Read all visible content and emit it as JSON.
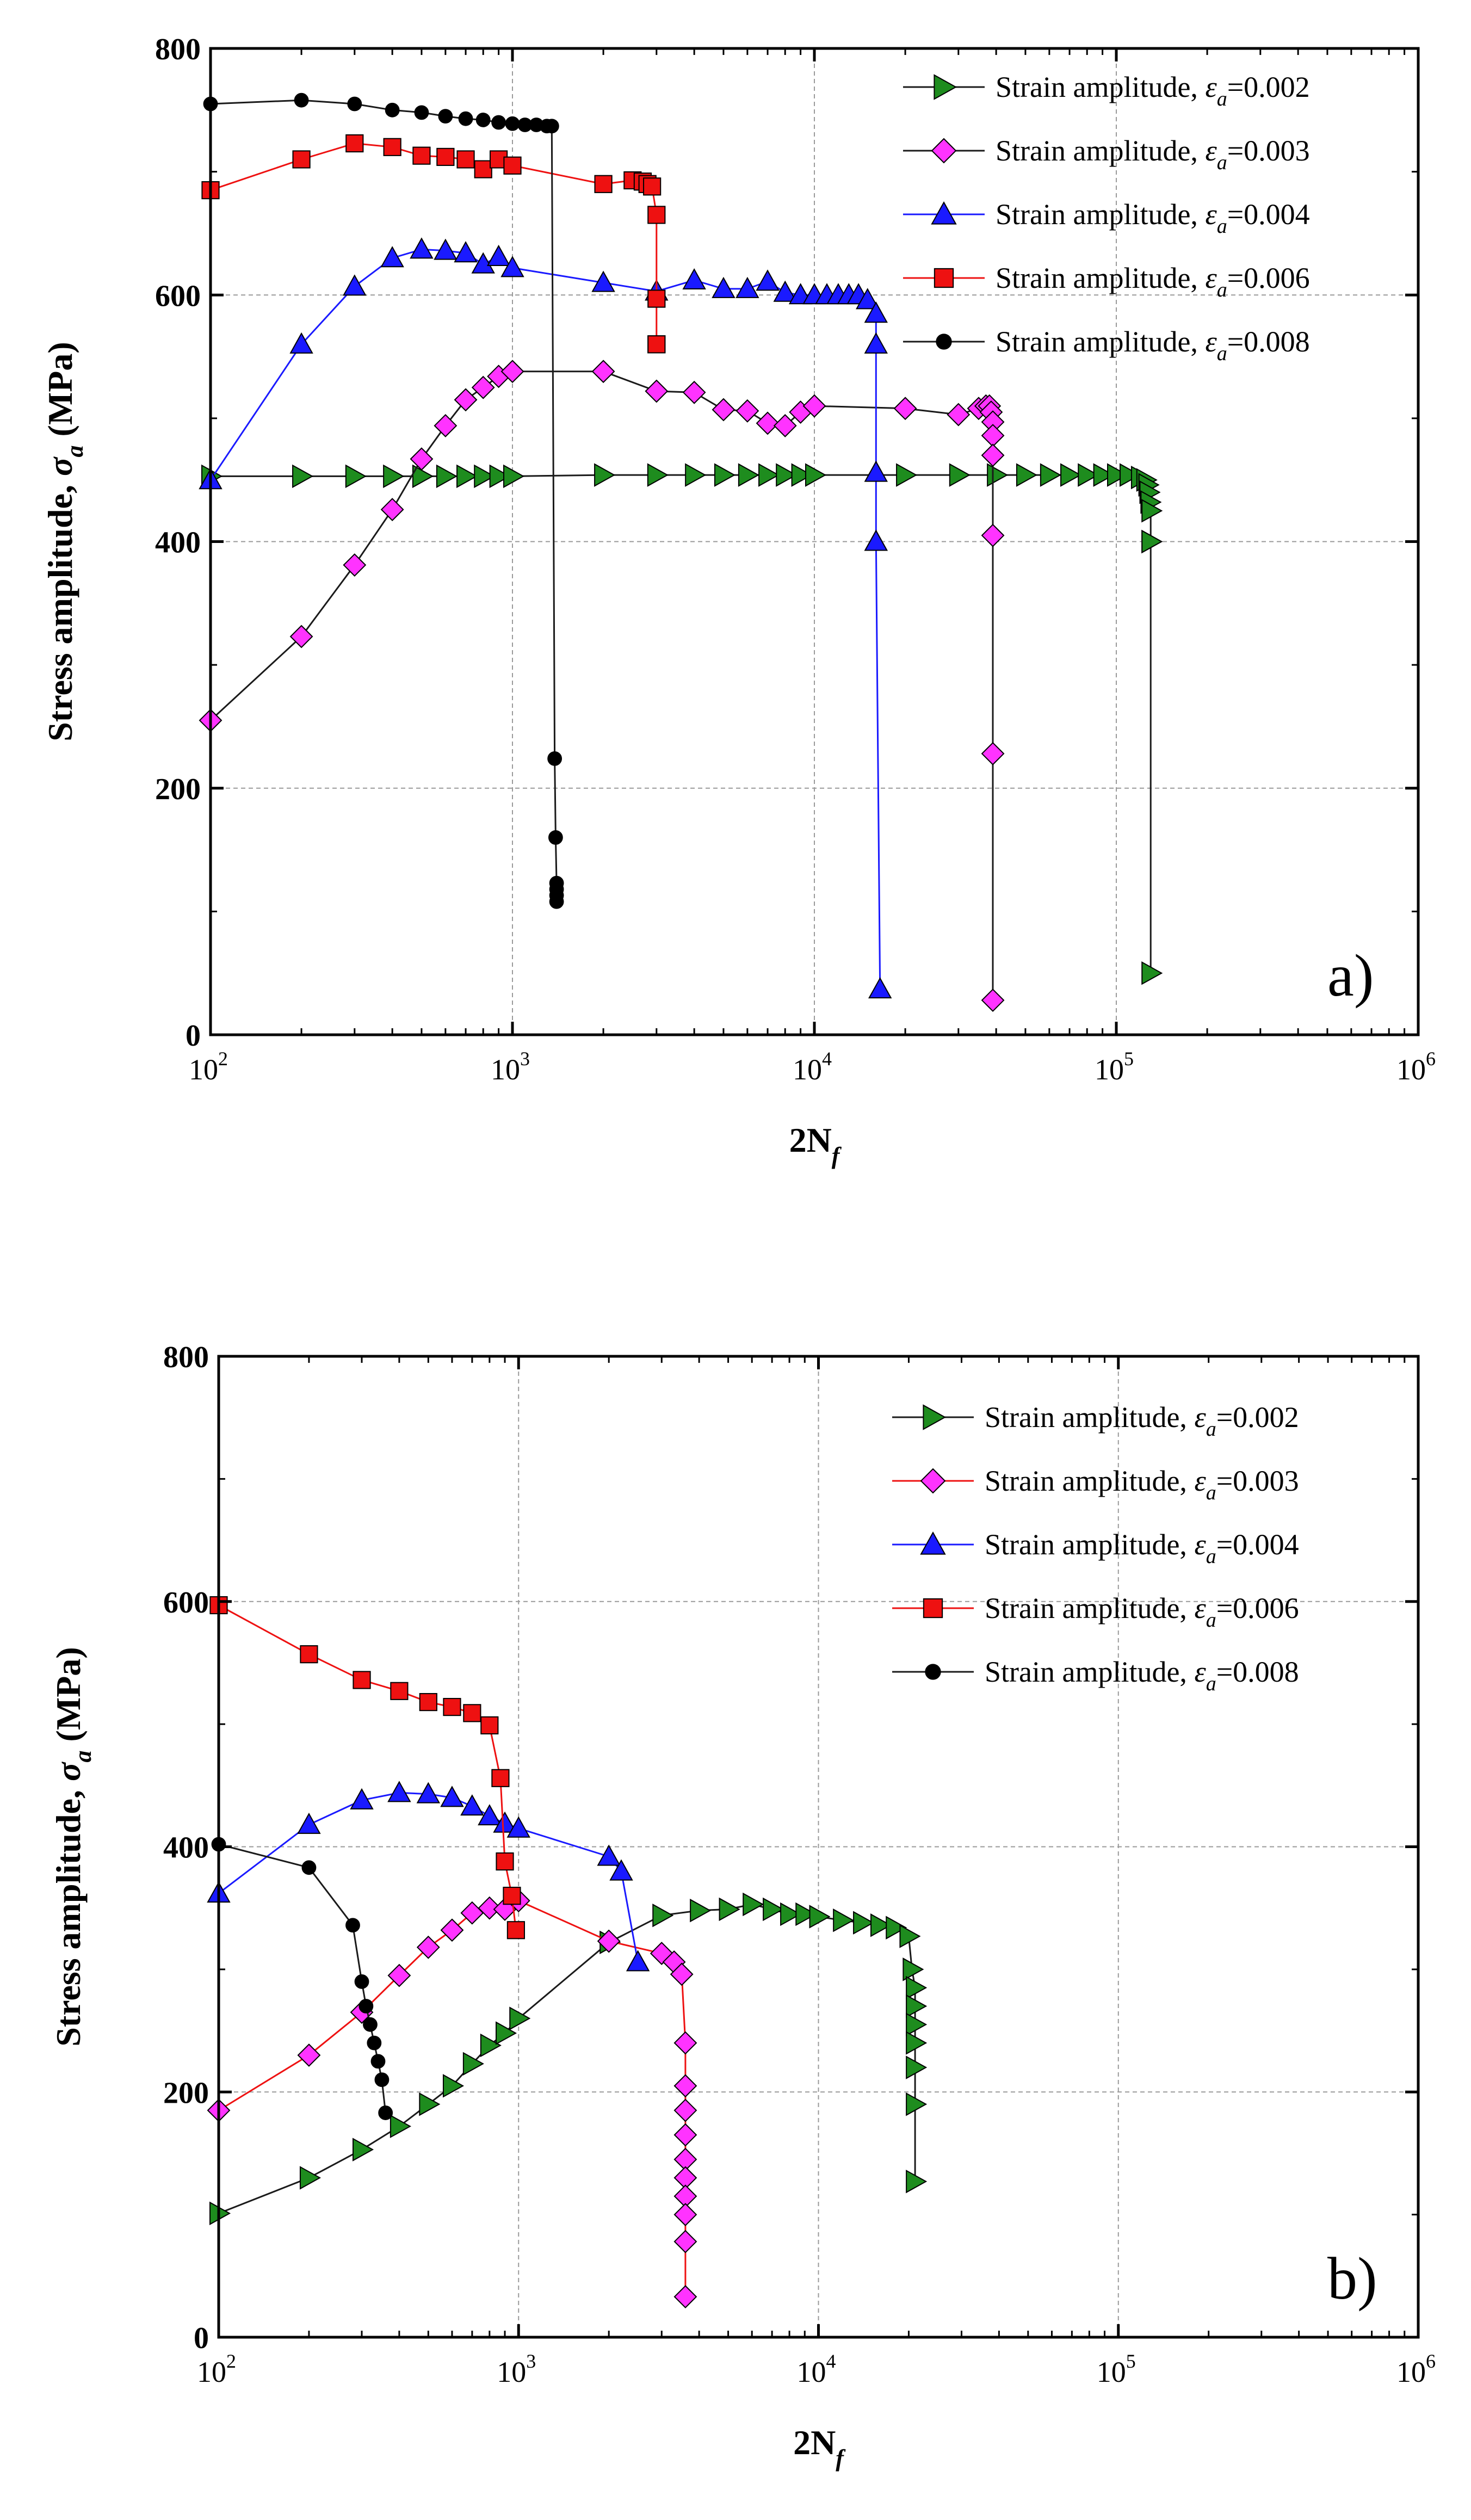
{
  "figure": {
    "panels": [
      "a)",
      "b)"
    ]
  },
  "chart_data": [
    {
      "type": "line",
      "panel_label": "a)",
      "xlabel_main": "2N",
      "xlabel_sub": "f",
      "ylabel_main": "Stress amplitude, ",
      "ylabel_sym": "σ",
      "ylabel_sub": "a",
      "ylabel_unit": " (MPa)",
      "x_scale": "log",
      "xlim": [
        100,
        1000000
      ],
      "ylim": [
        0,
        800
      ],
      "x_ticks": [
        {
          "base": "10",
          "exp": "2"
        },
        {
          "base": "10",
          "exp": "3"
        },
        {
          "base": "10",
          "exp": "4"
        },
        {
          "base": "10",
          "exp": "5"
        },
        {
          "base": "10",
          "exp": "6"
        }
      ],
      "y_ticks": [
        "0",
        "200",
        "400",
        "600",
        "800"
      ],
      "grid": true,
      "legend_position": "top-right",
      "series": [
        {
          "legend_prefix": "Strain amplitude, ",
          "legend_sym": "ε",
          "legend_sub": "a",
          "legend_value": "=0.002",
          "marker": "triangle-right",
          "marker_color": "#1e8c1e",
          "line_color": "#1a1a1a",
          "x": [
            100,
            200,
            300,
            400,
            500,
            600,
            700,
            800,
            900,
            1000,
            2000,
            3000,
            4000,
            5000,
            6000,
            7000,
            8000,
            9000,
            10000,
            20000,
            30000,
            40000,
            50000,
            60000,
            70000,
            80000,
            90000,
            100000,
            110000,
            120000,
            125000,
            127000,
            128000,
            129000,
            130000,
            130000,
            130000,
            130000
          ],
          "y": [
            453,
            453,
            453,
            453,
            453,
            453,
            453,
            453,
            453,
            453,
            454,
            454,
            454,
            454,
            454,
            454,
            454,
            454,
            454,
            454,
            454,
            454,
            454,
            454,
            454,
            454,
            454,
            454,
            454,
            452,
            450,
            446,
            440,
            432,
            425,
            400,
            400,
            50
          ]
        },
        {
          "legend_prefix": "Strain amplitude, ",
          "legend_sym": "ε",
          "legend_sub": "a",
          "legend_value": "=0.003",
          "marker": "diamond",
          "marker_color": "#ff33ff",
          "line_color": "#1a1a1a",
          "x": [
            100,
            200,
            300,
            400,
            500,
            600,
            700,
            800,
            900,
            1000,
            2000,
            3000,
            4000,
            5000,
            6000,
            7000,
            8000,
            9000,
            10000,
            20000,
            30000,
            35000,
            37000,
            38000,
            38500,
            39000,
            39000,
            39000,
            39000,
            39000,
            39000
          ],
          "y": [
            255,
            323,
            381,
            426,
            467,
            494,
            515,
            525,
            534,
            538,
            538,
            522,
            521,
            507,
            506,
            496,
            494,
            505,
            510,
            508,
            503,
            508,
            510,
            510,
            505,
            497,
            486,
            470,
            405,
            228,
            28
          ]
        },
        {
          "legend_prefix": "Strain amplitude, ",
          "legend_sym": "ε",
          "legend_sub": "a",
          "legend_value": "=0.004",
          "marker": "triangle-up",
          "marker_color": "#1a1aff",
          "line_color": "#1a1aff",
          "x": [
            100,
            200,
            300,
            400,
            500,
            600,
            700,
            800,
            900,
            1000,
            2000,
            3000,
            4000,
            5000,
            6000,
            7000,
            8000,
            9000,
            10000,
            11000,
            12000,
            13000,
            14000,
            15000,
            16000,
            16000,
            16000,
            16000,
            16000,
            16500
          ],
          "y": [
            450,
            560,
            607,
            630,
            637,
            636,
            634,
            625,
            631,
            622,
            610,
            603,
            612,
            605,
            605,
            611,
            602,
            600,
            600,
            600,
            600,
            600,
            600,
            596,
            585,
            560,
            456,
            400,
            400,
            37
          ]
        },
        {
          "legend_prefix": "Strain amplitude, ",
          "legend_sym": "ε",
          "legend_sub": "a",
          "legend_value": "=0.006",
          "marker": "square",
          "marker_color": "#ee1111",
          "line_color": "#ee1111",
          "x": [
            100,
            200,
            300,
            400,
            500,
            600,
            700,
            800,
            900,
            1000,
            2000,
            2500,
            2700,
            2800,
            2900,
            3000,
            3000,
            3000,
            3000
          ],
          "y": [
            685,
            710,
            723,
            720,
            713,
            712,
            710,
            702,
            710,
            705,
            690,
            693,
            692,
            690,
            688,
            665,
            597,
            560,
            560
          ]
        },
        {
          "legend_prefix": "Strain amplitude, ",
          "legend_sym": "ε",
          "legend_sub": "a",
          "legend_value": "=0.008",
          "marker": "circle",
          "marker_color": "#000000",
          "line_color": "#1a1a1a",
          "x": [
            100,
            200,
            300,
            400,
            500,
            600,
            700,
            800,
            900,
            1000,
            1100,
            1200,
            1300,
            1350,
            1380,
            1390,
            1400,
            1400,
            1400,
            1400
          ],
          "y": [
            755,
            758,
            755,
            750,
            748,
            745,
            743,
            742,
            740,
            739,
            738,
            738,
            737,
            737,
            224,
            160,
            123,
            118,
            113,
            108
          ]
        }
      ]
    },
    {
      "type": "line",
      "panel_label": "b)",
      "xlabel_main": "2N",
      "xlabel_sub": "f",
      "ylabel_main": "Stress amplitude, ",
      "ylabel_sym": "σ",
      "ylabel_sub": "a",
      "ylabel_unit": " (MPa)",
      "x_scale": "log",
      "xlim": [
        100,
        1000000
      ],
      "ylim": [
        0,
        800
      ],
      "x_ticks": [
        {
          "base": "10",
          "exp": "2"
        },
        {
          "base": "10",
          "exp": "3"
        },
        {
          "base": "10",
          "exp": "4"
        },
        {
          "base": "10",
          "exp": "5"
        },
        {
          "base": "10",
          "exp": "6"
        }
      ],
      "y_ticks": [
        "0",
        "200",
        "400",
        "600",
        "800"
      ],
      "grid": true,
      "legend_position": "top-right",
      "series": [
        {
          "legend_prefix": "Strain amplitude, ",
          "legend_sym": "ε",
          "legend_sub": "a",
          "legend_value": "=0.002",
          "marker": "triangle-right",
          "marker_color": "#1e8c1e",
          "line_color": "#1a1a1a",
          "x": [
            100,
            200,
            300,
            400,
            500,
            600,
            700,
            800,
            900,
            1000,
            2000,
            3000,
            4000,
            5000,
            6000,
            7000,
            8000,
            9000,
            10000,
            12000,
            14000,
            16000,
            18000,
            20000,
            20500,
            21000,
            21000,
            21000,
            21000,
            21000,
            21000,
            21000
          ],
          "y": [
            101,
            130,
            153,
            172,
            190,
            205,
            223,
            238,
            248,
            260,
            322,
            344,
            348,
            349,
            353,
            349,
            345,
            345,
            343,
            340,
            338,
            336,
            334,
            327,
            300,
            285,
            270,
            255,
            240,
            220,
            190,
            127
          ]
        },
        {
          "legend_prefix": "Strain amplitude, ",
          "legend_sym": "ε",
          "legend_sub": "a",
          "legend_value": "=0.003",
          "marker": "diamond",
          "marker_color": "#ff33ff",
          "line_color": "#ee1111",
          "x": [
            100,
            200,
            300,
            400,
            500,
            600,
            700,
            800,
            900,
            1000,
            2000,
            3000,
            3300,
            3500,
            3600,
            3600,
            3600,
            3600,
            3600,
            3600,
            3600,
            3600,
            3600,
            3600
          ],
          "y": [
            185,
            230,
            265,
            295,
            318,
            332,
            346,
            350,
            349,
            356,
            323,
            313,
            306,
            296,
            240,
            205,
            185,
            165,
            145,
            130,
            115,
            100,
            78,
            33
          ]
        },
        {
          "legend_prefix": "Strain amplitude, ",
          "legend_sym": "ε",
          "legend_sub": "a",
          "legend_value": "=0.004",
          "marker": "triangle-up",
          "marker_color": "#1a1aff",
          "line_color": "#1a1aff",
          "x": [
            100,
            200,
            300,
            400,
            500,
            600,
            700,
            800,
            900,
            1000,
            2000,
            2200,
            2500
          ],
          "y": [
            362,
            418,
            438,
            444,
            443,
            440,
            433,
            425,
            419,
            415,
            392,
            380,
            306
          ]
        },
        {
          "legend_prefix": "Strain amplitude, ",
          "legend_sym": "ε",
          "legend_sub": "a",
          "legend_value": "=0.006",
          "marker": "square",
          "marker_color": "#ee1111",
          "line_color": "#ee1111",
          "x": [
            100,
            200,
            300,
            400,
            500,
            600,
            700,
            800,
            870,
            900,
            950,
            980
          ],
          "y": [
            597,
            557,
            536,
            527,
            518,
            514,
            509,
            499,
            456,
            388,
            360,
            332
          ]
        },
        {
          "legend_prefix": "Strain amplitude, ",
          "legend_sym": "ε",
          "legend_sub": "a",
          "legend_value": "=0.008",
          "marker": "circle",
          "marker_color": "#000000",
          "line_color": "#1a1a1a",
          "x": [
            100,
            200,
            280,
            300,
            310,
            320,
            330,
            340,
            350,
            360
          ],
          "y": [
            402,
            383,
            336,
            290,
            270,
            255,
            240,
            225,
            210,
            183
          ]
        }
      ]
    }
  ]
}
